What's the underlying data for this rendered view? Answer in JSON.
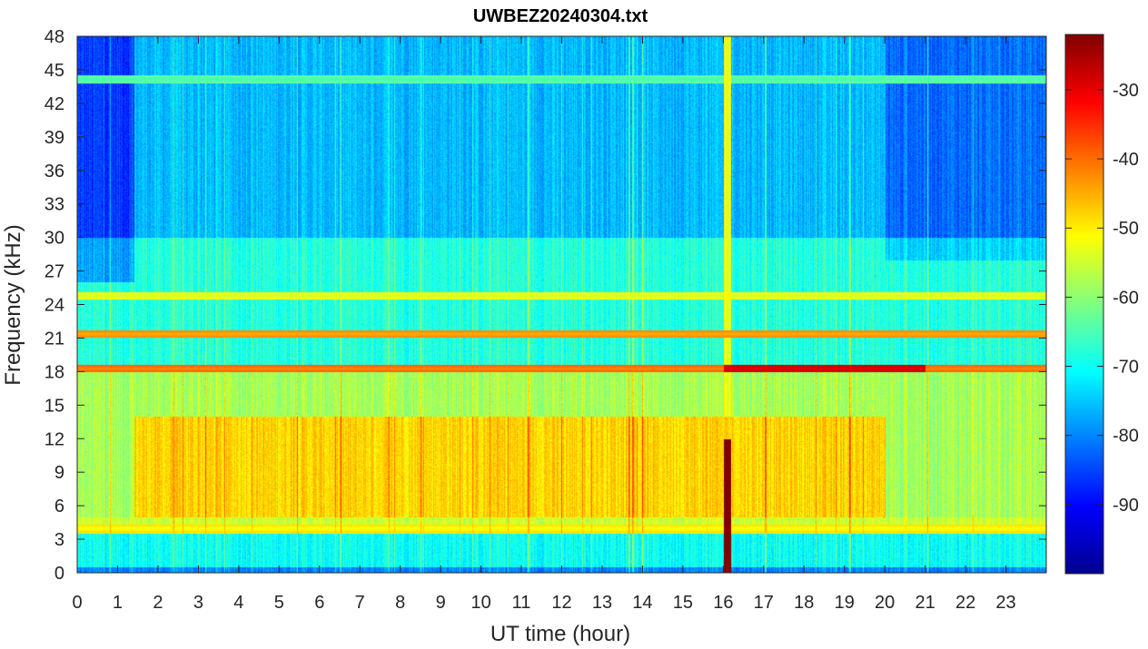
{
  "chart_data": {
    "type": "heatmap",
    "title": "UWBEZ20240304.txt",
    "xlabel": "UT time (hour)",
    "ylabel": "Frequency (kHz)",
    "xlim": [
      0,
      24
    ],
    "ylim": [
      0,
      48
    ],
    "x_ticks": [
      0,
      1,
      2,
      3,
      4,
      5,
      6,
      7,
      8,
      9,
      10,
      11,
      12,
      13,
      14,
      15,
      16,
      17,
      18,
      19,
      20,
      21,
      22,
      23
    ],
    "y_ticks": [
      0,
      3,
      6,
      9,
      12,
      15,
      18,
      21,
      24,
      27,
      30,
      33,
      36,
      39,
      42,
      45,
      48
    ],
    "colorbar": {
      "colormap": "jet",
      "range": [
        -100,
        -22
      ],
      "ticks": [
        -30,
        -40,
        -50,
        -60,
        -70,
        -80,
        -90
      ]
    },
    "background_level_db": [
      {
        "f_khz": [
          0,
          0.5
        ],
        "db": -80
      },
      {
        "f_khz": [
          0.5,
          3.5
        ],
        "db": -70
      },
      {
        "f_khz": [
          3.5,
          5
        ],
        "db": -55
      },
      {
        "f_khz": [
          5,
          14
        ],
        "db": -48
      },
      {
        "f_khz": [
          14,
          18
        ],
        "db": -58
      },
      {
        "f_khz": [
          18,
          30
        ],
        "db": -68
      },
      {
        "f_khz": [
          30,
          48
        ],
        "db": -76
      }
    ],
    "lines_khz": [
      {
        "f": 18.3,
        "t": [
          0,
          24
        ],
        "db": -42
      },
      {
        "f": 18.3,
        "t": [
          16,
          21
        ],
        "db": -30
      },
      {
        "f": 21.4,
        "t": [
          0,
          24
        ],
        "db": -45
      },
      {
        "f": 24.8,
        "t": [
          0,
          24
        ],
        "db": -55
      },
      {
        "f": 4.0,
        "t": [
          0,
          24
        ],
        "db": -52
      },
      {
        "f": 44.2,
        "t": [
          0,
          24
        ],
        "db": -66
      }
    ],
    "bursts": [
      {
        "t": 16.1,
        "f_khz": [
          0,
          12
        ],
        "db": -25
      },
      {
        "t": 16.1,
        "f_khz": [
          0,
          48
        ],
        "db": -55
      }
    ]
  }
}
